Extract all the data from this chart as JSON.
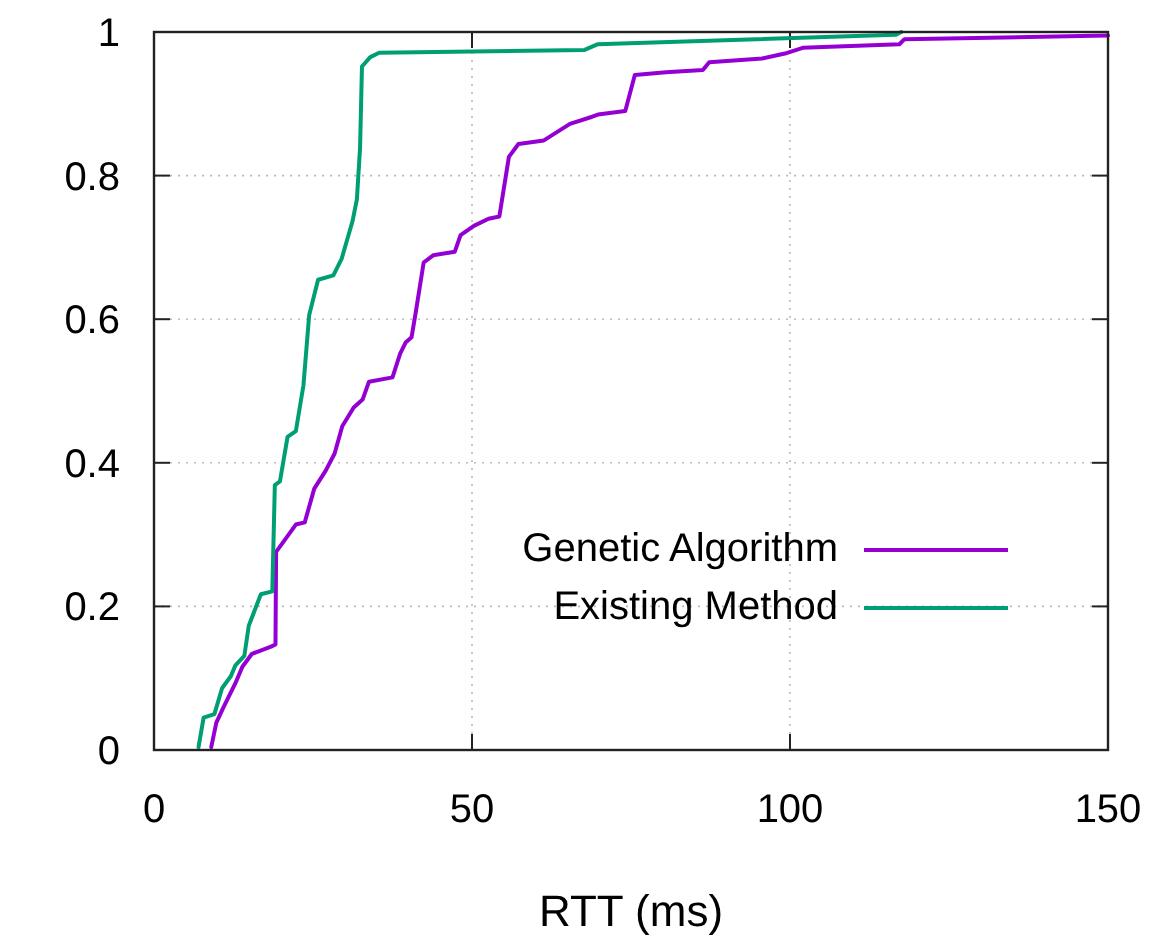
{
  "chart_data": {
    "type": "line",
    "xlabel": "RTT (ms)",
    "xlim": [
      0,
      150
    ],
    "xticks": [
      0,
      50,
      100,
      150
    ],
    "ylim": [
      0,
      1
    ],
    "yticks": [
      0,
      0.2,
      0.4,
      0.6,
      0.8,
      1
    ],
    "grid": true,
    "legend": "bottom right",
    "line_style": "solid",
    "marker": "none",
    "series": [
      {
        "name": "Genetic Algorithm",
        "color": "#9400d3",
        "x": [
          9.0,
          9.8,
          10.9,
          12.8,
          13.9,
          15.4,
          18.4,
          19.1,
          19.2,
          20.6,
          22.3,
          23.7,
          25.2,
          27.0,
          28.4,
          29.6,
          31.4,
          32.8,
          33.8,
          37.5,
          38.7,
          39.6,
          40.5,
          41.2,
          42.4,
          43.9,
          47.3,
          48.2,
          50.3,
          52.6,
          54.3,
          55.8,
          57.3,
          61.3,
          65.4,
          68.9,
          69.8,
          74.1,
          75.6,
          80.5,
          86.3,
          87.3,
          95.6,
          99.2,
          102.0,
          117.2,
          118.0,
          150
        ],
        "values": [
          0.004,
          0.038,
          0.059,
          0.093,
          0.116,
          0.134,
          0.144,
          0.147,
          0.276,
          0.293,
          0.314,
          0.317,
          0.364,
          0.389,
          0.413,
          0.451,
          0.477,
          0.488,
          0.513,
          0.519,
          0.552,
          0.568,
          0.575,
          0.612,
          0.679,
          0.689,
          0.694,
          0.717,
          0.73,
          0.74,
          0.743,
          0.826,
          0.844,
          0.849,
          0.872,
          0.882,
          0.885,
          0.89,
          0.94,
          0.944,
          0.947,
          0.958,
          0.963,
          0.97,
          0.978,
          0.983,
          0.99,
          0.995
        ]
      },
      {
        "name": "Existing Method",
        "color": "#009e73",
        "x": [
          7.0,
          7.8,
          9.5,
          10.7,
          12.1,
          12.8,
          14.2,
          14.9,
          16.8,
          18.6,
          19.0,
          19.8,
          21.0,
          22.3,
          23.5,
          24.4,
          25.8,
          28.2,
          29.5,
          31.2,
          31.9,
          32.4,
          32.7,
          34.0,
          35.4,
          67.7,
          69.8,
          116.6,
          117.5
        ],
        "values": [
          0.004,
          0.045,
          0.05,
          0.086,
          0.103,
          0.118,
          0.131,
          0.173,
          0.217,
          0.221,
          0.369,
          0.374,
          0.436,
          0.444,
          0.508,
          0.606,
          0.655,
          0.661,
          0.684,
          0.736,
          0.767,
          0.839,
          0.952,
          0.965,
          0.971,
          0.975,
          0.983,
          0.996,
          1.0
        ]
      }
    ]
  }
}
